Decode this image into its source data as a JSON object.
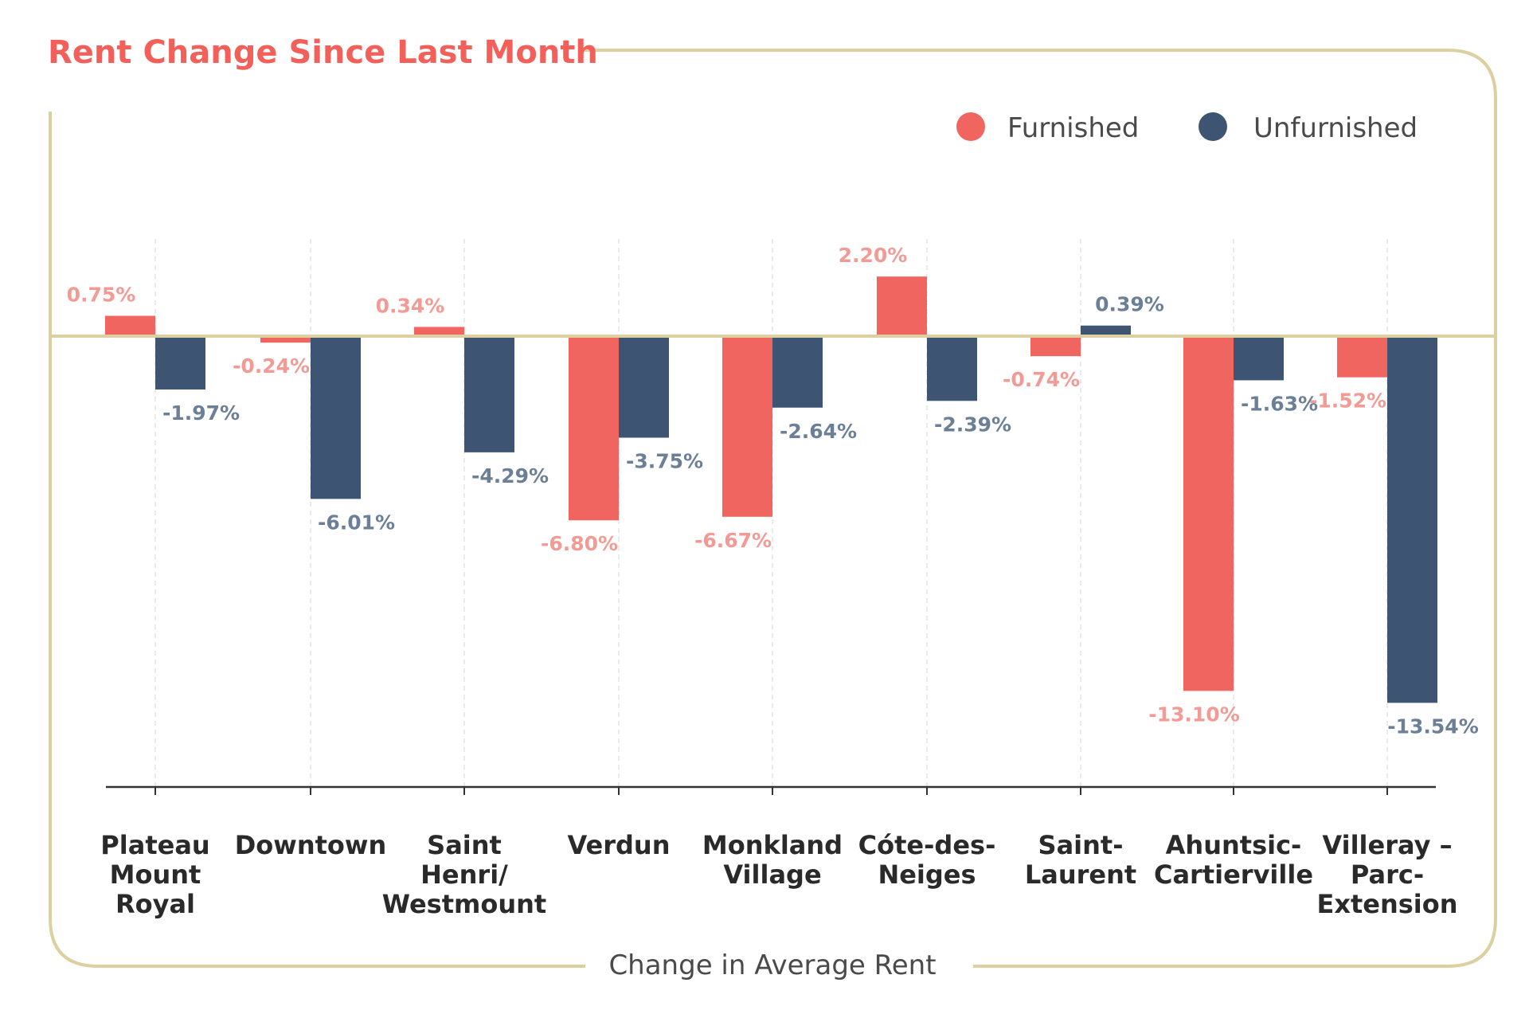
{
  "colors": {
    "furnished": "#F0655F",
    "unfurnished": "#3D5573",
    "furnished_label": "#F39A94",
    "unfurnished_label": "#6B7F97",
    "frame": "#DDD0A0",
    "title": "#F26059"
  },
  "chart_data": {
    "type": "bar",
    "title": "Rent Change Since Last Month",
    "xlabel": "Change in Average Rent",
    "ylabel": "",
    "ylim": [
      -16,
      5
    ],
    "legend_position": "top-right",
    "grid": false,
    "categories": [
      [
        "Plateau",
        "Mount",
        "Royal"
      ],
      [
        "Downtown"
      ],
      [
        "Saint",
        "Henri/",
        "Westmount"
      ],
      [
        "Verdun"
      ],
      [
        "Monkland",
        "Village"
      ],
      [
        "Cóte-des-",
        "Neiges"
      ],
      [
        "Saint-",
        "Laurent"
      ],
      [
        "Ahuntsic-",
        "Cartierville"
      ],
      [
        "Villeray –",
        "Parc-",
        "Extension"
      ]
    ],
    "series": [
      {
        "name": "Furnished",
        "values": [
          0.75,
          -0.24,
          0.34,
          -6.8,
          -6.67,
          2.2,
          -0.74,
          -13.1,
          -1.52
        ],
        "labels": [
          "0.75%",
          "-0.24%",
          "0.34%",
          "-6.80%",
          "-6.67%",
          "2.20%",
          "-0.74%",
          "-13.10%",
          "-1.52%"
        ]
      },
      {
        "name": "Unfurnished",
        "values": [
          -1.97,
          -6.01,
          -4.29,
          -3.75,
          -2.64,
          -2.39,
          0.39,
          -1.63,
          -13.54
        ],
        "labels": [
          "-1.97%",
          "-6.01%",
          "-4.29%",
          "-3.75%",
          "-2.64%",
          "-2.39%",
          "0.39%",
          "-1.63%",
          "-13.54%"
        ]
      }
    ]
  }
}
